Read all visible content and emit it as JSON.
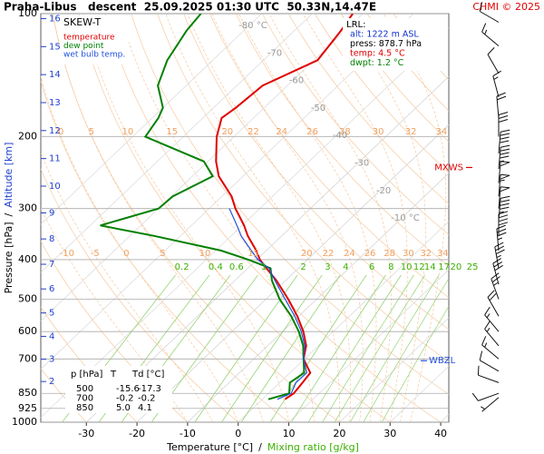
{
  "header": {
    "title": "Praha-Libus   descent  25.09.2025 01:30 UTC  50.33N,14.47E",
    "credit": "CHMI © 2025"
  },
  "chart_data": {
    "type": "skew-t",
    "legend_title": "SKEW-T",
    "x_label": "Temperature [°C]",
    "x_label_sep": "/",
    "x_label2": "Mixing ratio [g/kg]",
    "y_label": "Pressure [hPa]",
    "y_label_sep": "/",
    "y_label2": "Altitude [km]",
    "xlim": [
      -39,
      41.6
    ],
    "xticks": [
      -30,
      -20,
      -10,
      0,
      10,
      20,
      30,
      40
    ],
    "ylim": [
      1000,
      100
    ],
    "yticks": [
      100,
      200,
      300,
      400,
      500,
      600,
      700,
      850,
      925,
      1000
    ],
    "y2ticks": [
      2,
      3,
      4,
      5,
      6,
      7,
      8,
      9,
      10,
      11,
      12,
      13,
      14,
      15,
      16
    ],
    "log_scale": true,
    "grid": true,
    "isotherms": [
      {
        "value": -80,
        "label": "-80 °C"
      },
      -70,
      -60,
      -50,
      -40,
      -30,
      -20,
      {
        "value": -10,
        "label": "-10 °C"
      }
    ],
    "dry_adiabats": [
      -30,
      -20,
      -10,
      0,
      10,
      20,
      30,
      40,
      50,
      60,
      70,
      80,
      90,
      100,
      110,
      120,
      130,
      140,
      150
    ],
    "moist_adiabats": [
      -10,
      -5,
      0,
      5,
      10,
      15,
      20,
      22,
      24,
      26,
      28,
      30,
      32,
      34
    ],
    "mixing_ratios": [
      0.2,
      0.4,
      0.6,
      1,
      2,
      3,
      4,
      6,
      8,
      10,
      12,
      14,
      17,
      20,
      25
    ],
    "pressure": [
      878.7,
      850,
      800,
      757,
      700,
      650,
      600,
      550,
      500,
      450,
      420,
      400,
      380,
      350,
      330,
      300,
      280,
      250,
      230,
      200,
      180,
      170,
      150,
      130,
      110,
      100
    ],
    "series": [
      {
        "name": "temperature",
        "color": "#e00000",
        "values": [
          4.5,
          5.0,
          4.5,
          4.0,
          -0.2,
          -2.4,
          -5.9,
          -10.3,
          -15.6,
          -21.8,
          -26.3,
          -29.4,
          -32,
          -36.7,
          -39.6,
          -44.8,
          -48.1,
          -54.8,
          -58.4,
          -63.4,
          -66.3,
          -65.6,
          -64.9,
          -59.3,
          -60.8,
          -62
        ]
      },
      {
        "name": "dew point",
        "color": "#008000",
        "values": [
          1.2,
          4.1,
          2.0,
          2.8,
          -0.2,
          -3.0,
          -6.8,
          -11.5,
          -17.3,
          -22.7,
          -25.5,
          -31.7,
          -39,
          -55.2,
          -68,
          -60,
          -59.7,
          -56,
          -60.8,
          -77.5,
          -78.8,
          -80,
          -85.6,
          -89,
          -91.3,
          -92
        ]
      },
      {
        "name": "wet bulb temp.",
        "color": "#2050e0",
        "values": [
          3.0,
          4.5,
          3.2,
          3.3,
          -0.2,
          -2.7,
          -6.3,
          -10.8,
          -16.2,
          -22.1,
          -25.8,
          -29.8,
          -33,
          -38,
          -41,
          -46,
          null,
          null,
          null,
          null,
          null,
          null,
          null,
          null,
          null,
          null
        ]
      }
    ],
    "markers": [
      {
        "label": "MXWS",
        "pressure": 238,
        "color": "#e00000"
      },
      {
        "label": "WBZL",
        "pressure": 707,
        "color": "#2050e0"
      }
    ],
    "wind": {
      "pressure": [
        105,
        120,
        140,
        160,
        180,
        200,
        220,
        240,
        260,
        280,
        300,
        320,
        350,
        380,
        420,
        460,
        500,
        550,
        600,
        650,
        700,
        750,
        800,
        850,
        870
      ],
      "direction": [
        300,
        310,
        330,
        345,
        355,
        0,
        5,
        5,
        5,
        5,
        5,
        5,
        0,
        355,
        350,
        345,
        340,
        330,
        320,
        320,
        310,
        300,
        290,
        250,
        230
      ],
      "speed": [
        10,
        15,
        10,
        15,
        20,
        30,
        40,
        45,
        50,
        55,
        50,
        45,
        40,
        35,
        35,
        30,
        25,
        20,
        15,
        15,
        15,
        10,
        10,
        10,
        5
      ]
    },
    "info_box": {
      "title": "LRL:",
      "lines": [
        {
          "text": "alt: 1222 m ASL",
          "color": "#1030d0"
        },
        {
          "text": "press: 878.7 hPa",
          "color": "#000000"
        },
        {
          "text": "temp: 4.5 °C",
          "color": "#e00000"
        },
        {
          "text": "dwpt: 1.2 °C",
          "color": "#008000"
        }
      ]
    },
    "table": {
      "columns": [
        "p [hPa]",
        "T",
        "Td [°C]"
      ],
      "rows": [
        [
          "500",
          "-15.6",
          "-17.3"
        ],
        [
          "700",
          "-0.2",
          "-0.2"
        ],
        [
          "850",
          "5.0",
          "4.1"
        ]
      ]
    }
  }
}
